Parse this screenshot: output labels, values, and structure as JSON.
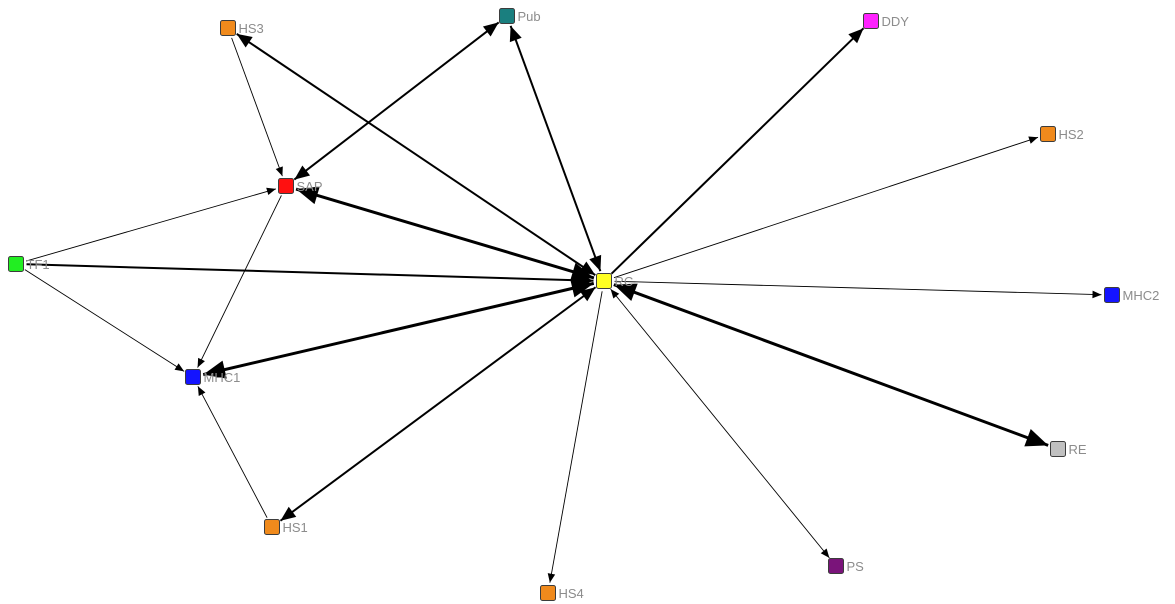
{
  "graph": {
    "nodes": [
      {
        "id": "HS3",
        "label": "HS3",
        "color": "#f08a1c"
      },
      {
        "id": "Pub",
        "label": "Pub",
        "color": "#1a7f7f"
      },
      {
        "id": "DDY",
        "label": "DDY",
        "color": "#ff22ff"
      },
      {
        "id": "HS2",
        "label": "HS2",
        "color": "#f08a1c"
      },
      {
        "id": "SAP",
        "label": "SAP",
        "color": "#ff1010"
      },
      {
        "id": "TF1",
        "label": "TF1",
        "color": "#22ee22"
      },
      {
        "id": "RC",
        "label": "RC",
        "color": "#ffff22"
      },
      {
        "id": "MHC2",
        "label": "MHC2",
        "color": "#1414ff"
      },
      {
        "id": "MHC1",
        "label": "MHC1",
        "color": "#1414ff"
      },
      {
        "id": "RE",
        "label": "RE",
        "color": "#c0c0c0"
      },
      {
        "id": "HS1",
        "label": "HS1",
        "color": "#f08a1c"
      },
      {
        "id": "PS",
        "label": "PS",
        "color": "#7a147a"
      },
      {
        "id": "HS4",
        "label": "HS4",
        "color": "#f08a1c"
      }
    ],
    "edges": [
      {
        "from": "HS3",
        "to": "SAP",
        "weight": 1,
        "bidirectional": false
      },
      {
        "from": "TF1",
        "to": "SAP",
        "weight": 1,
        "bidirectional": false
      },
      {
        "from": "TF1",
        "to": "MHC1",
        "weight": 1,
        "bidirectional": false
      },
      {
        "from": "SAP",
        "to": "MHC1",
        "weight": 1,
        "bidirectional": false
      },
      {
        "from": "HS1",
        "to": "MHC1",
        "weight": 1,
        "bidirectional": false
      },
      {
        "from": "SAP",
        "to": "Pub",
        "weight": 2,
        "bidirectional": true
      },
      {
        "from": "RC",
        "to": "HS3",
        "weight": 2,
        "bidirectional": true
      },
      {
        "from": "RC",
        "to": "Pub",
        "weight": 2,
        "bidirectional": true
      },
      {
        "from": "RC",
        "to": "DDY",
        "weight": 2,
        "bidirectional": false
      },
      {
        "from": "RC",
        "to": "HS2",
        "weight": 1,
        "bidirectional": false
      },
      {
        "from": "RC",
        "to": "SAP",
        "weight": 3,
        "bidirectional": true
      },
      {
        "from": "TF1",
        "to": "RC",
        "weight": 2,
        "bidirectional": false
      },
      {
        "from": "RC",
        "to": "MHC2",
        "weight": 1,
        "bidirectional": false
      },
      {
        "from": "RC",
        "to": "MHC1",
        "weight": 3,
        "bidirectional": true
      },
      {
        "from": "RC",
        "to": "RE",
        "weight": 3,
        "bidirectional": true
      },
      {
        "from": "RC",
        "to": "HS1",
        "weight": 2,
        "bidirectional": true
      },
      {
        "from": "RC",
        "to": "PS",
        "weight": 1,
        "bidirectional": true
      },
      {
        "from": "RC",
        "to": "HS4",
        "weight": 1,
        "bidirectional": false
      }
    ]
  }
}
